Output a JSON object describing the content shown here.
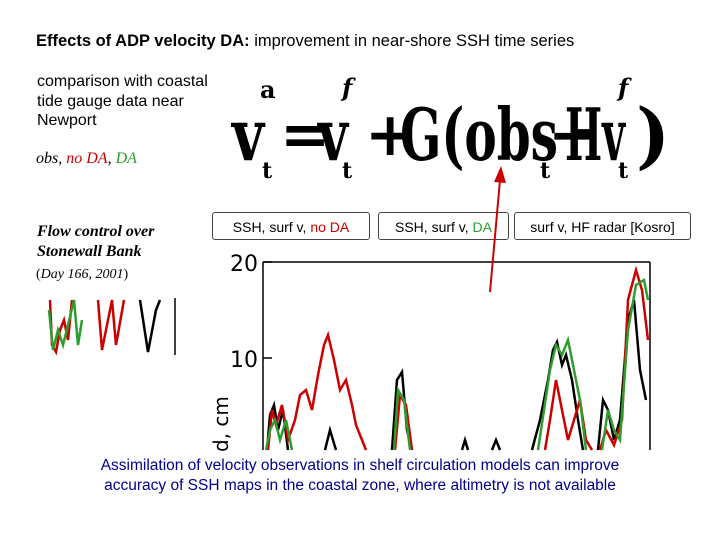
{
  "title": {
    "bold": "Effects of ADP velocity DA:",
    "rest": " improvement in near-shore SSH time series"
  },
  "comparison": {
    "line1": "comparison with coastal",
    "line2": "tide gauge data near",
    "line3": "Newport"
  },
  "legend": {
    "obs": "obs,",
    "no_da": "no DA",
    "sep": ",",
    "da": "DA"
  },
  "flow": {
    "line1": "Flow control over",
    "line2": "Stonewall Bank"
  },
  "day": {
    "open": "(",
    "text": "Day 166, 2001",
    "close": ")"
  },
  "boxes": {
    "box1": {
      "prefix": "SSH, surf v, ",
      "highlight": "no DA"
    },
    "box2": {
      "prefix": "SSH, surf v, ",
      "highlight": "DA"
    },
    "box3": {
      "text": "surf v, HF radar [Kosro]"
    }
  },
  "plot": {
    "tick_20": "20",
    "tick_10": "10",
    "ylabel": "d, cm"
  },
  "bottom": {
    "line1": "Assimilation of velocity observations in shelf circulation models can improve",
    "line2": "accuracy of SSH maps in the coastal zone, where altimetry is not available"
  },
  "colors": {
    "obs": "#000000",
    "no_da": "#cc0000",
    "da": "#2e9d2e",
    "arrow": "#cc0000",
    "footer": "#00008b"
  }
}
